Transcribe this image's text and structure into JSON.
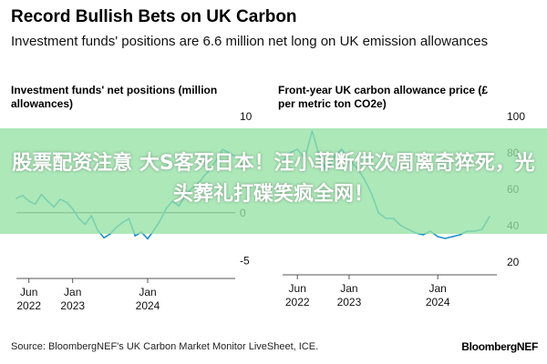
{
  "header": {
    "title": "Record Bullish Bets on UK Carbon",
    "subtitle": "Investment funds' positions are 6.6 million net long on UK emission allowances"
  },
  "overlay_banner": {
    "text": "股票配资注意 大S客死日本！汪小菲断供次周离奇猝死，光头葬礼打碟笑疯全网！"
  },
  "footer": {
    "source": "Source: BloombergNEF's UK Carbon Market Monitor LiveSheet, ICE.",
    "brand": "BloombergNEF"
  },
  "colors": {
    "series": "#1e90c8",
    "zero_line": "#333333",
    "tick_text": "#111111"
  },
  "chart_data": [
    {
      "type": "line",
      "title": "Investment funds' net positions (million allowances)",
      "x_tick_labels": [
        [
          "Jun",
          "2022"
        ],
        [
          "Jan",
          "2023"
        ],
        [
          "Jan",
          "2024"
        ]
      ],
      "x_ticks": [
        "2022-06",
        "2023-01",
        "2024-01"
      ],
      "y_ticks": [
        10,
        5,
        0,
        -5
      ],
      "ylim": [
        -5.5,
        10
      ],
      "xlim": [
        "2022-04",
        "2025-03"
      ],
      "series": [
        {
          "x": [
            "2022-04",
            "2022-05",
            "2022-06",
            "2022-07",
            "2022-08",
            "2022-09",
            "2022-10",
            "2022-11",
            "2022-12",
            "2023-01",
            "2023-02",
            "2023-03",
            "2023-04",
            "2023-05",
            "2023-06",
            "2023-07",
            "2023-08",
            "2023-09",
            "2023-10",
            "2023-11",
            "2023-12",
            "2024-01",
            "2024-02",
            "2024-03",
            "2024-04",
            "2024-05",
            "2024-06",
            "2024-07",
            "2024-08",
            "2024-09",
            "2024-10",
            "2024-11",
            "2024-12",
            "2025-01",
            "2025-02",
            "2025-03"
          ],
          "values": [
            1.5,
            1.8,
            1.2,
            0.9,
            1.9,
            1.2,
            0.6,
            1.4,
            1.1,
            0.4,
            -0.6,
            -1.2,
            -0.3,
            -1.8,
            -2.6,
            -2.2,
            -1.5,
            -1.0,
            -0.6,
            -2.4,
            -2.0,
            -2.7,
            -1.8,
            -0.8,
            0.5,
            1.2,
            0.7,
            1.8,
            2.5,
            3.0,
            3.8,
            4.5,
            5.5,
            6.6,
            6.2,
            5.9
          ]
        }
      ]
    },
    {
      "type": "line",
      "title": "Front-year UK carbon allowance price (£ per metric ton CO2e)",
      "x_tick_labels": [
        [
          "Jun",
          "2022"
        ],
        [
          "Jan",
          "2023"
        ],
        [
          "Jan",
          "2024"
        ]
      ],
      "x_ticks": [
        "2022-06",
        "2023-01",
        "2024-01"
      ],
      "y_ticks": [
        100,
        80,
        60,
        40,
        20
      ],
      "ylim": [
        20,
        100
      ],
      "xlim": [
        "2022-04",
        "2024-09"
      ],
      "series": [
        {
          "x": [
            "2022-04",
            "2022-05",
            "2022-06",
            "2022-07",
            "2022-08",
            "2022-09",
            "2022-10",
            "2022-11",
            "2022-12",
            "2023-01",
            "2023-02",
            "2023-03",
            "2023-04",
            "2023-05",
            "2023-06",
            "2023-07",
            "2023-08",
            "2023-09",
            "2023-10",
            "2023-11",
            "2023-12",
            "2024-01",
            "2024-02",
            "2024-03",
            "2024-04",
            "2024-05",
            "2024-06",
            "2024-07",
            "2024-08"
          ],
          "values": [
            75,
            80,
            82,
            77,
            92,
            78,
            70,
            78,
            82,
            76,
            72,
            66,
            58,
            47,
            44,
            44,
            40,
            38,
            36,
            35,
            37,
            34,
            33,
            34,
            35,
            37,
            37,
            38,
            45
          ]
        }
      ]
    }
  ]
}
